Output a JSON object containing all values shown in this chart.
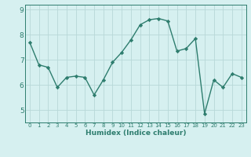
{
  "x": [
    0,
    1,
    2,
    3,
    4,
    5,
    6,
    7,
    8,
    9,
    10,
    11,
    12,
    13,
    14,
    15,
    16,
    17,
    18,
    19,
    20,
    21,
    22,
    23
  ],
  "y": [
    7.7,
    6.8,
    6.7,
    5.9,
    6.3,
    6.35,
    6.3,
    5.6,
    6.2,
    6.9,
    7.3,
    7.8,
    8.4,
    8.6,
    8.65,
    8.55,
    7.35,
    7.45,
    7.85,
    4.85,
    6.2,
    5.9,
    6.45,
    6.3
  ],
  "line_color": "#2e7d6e",
  "marker": "D",
  "marker_size": 2.2,
  "bg_color": "#d6f0f0",
  "grid_color": "#b8d8d8",
  "axis_color": "#2e7d6e",
  "xlabel": "Humidex (Indice chaleur)",
  "ylim": [
    4.5,
    9.2
  ],
  "xlim": [
    -0.5,
    23.5
  ],
  "xticks": [
    0,
    1,
    2,
    3,
    4,
    5,
    6,
    7,
    8,
    9,
    10,
    11,
    12,
    13,
    14,
    15,
    16,
    17,
    18,
    19,
    20,
    21,
    22,
    23
  ],
  "yticks": [
    5,
    6,
    7,
    8,
    9
  ],
  "xlabel_fontsize": 6.5,
  "xlabel_fontweight": "bold",
  "tick_fontsize_x": 5.0,
  "tick_fontsize_y": 6.5,
  "figsize": [
    3.2,
    2.0
  ],
  "dpi": 100
}
